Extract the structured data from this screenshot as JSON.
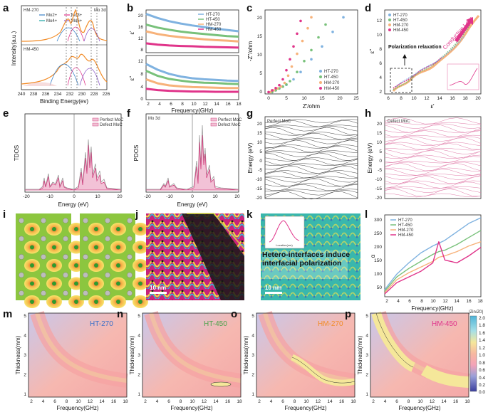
{
  "colors": {
    "ht270": "#7fb2e0",
    "ht450": "#78c17a",
    "hm270": "#f7b27a",
    "hm450": "#e0348a",
    "pink": "#e07aa8",
    "contour_low": "#3b3f9e",
    "contour_high": "#f5f0a0"
  },
  "panels": {
    "a": {
      "label": "a",
      "title_top": "HM-270",
      "title_top_right": "Mo 3d",
      "title_bottom": "HM-450",
      "legend": [
        "Mo2+",
        "Mo4+",
        "Mo3+",
        "Mo6+"
      ],
      "xlabel": "Binding Energy(ev)",
      "ylabel": "Intensity(a.u.)",
      "xticks": [
        "240",
        "238",
        "236",
        "234",
        "232",
        "230",
        "228",
        "226"
      ]
    },
    "b": {
      "label": "b",
      "xlabel": "Frequency(GHz)",
      "ylabel_top": "ε'",
      "ylabel_bottom": "ε''",
      "legend": [
        "HT-270",
        "HT-450",
        "HM-270",
        "HM-450"
      ],
      "xticks": [
        "2",
        "4",
        "6",
        "8",
        "10",
        "12",
        "14",
        "16",
        "18"
      ],
      "yticks_top": [
        "20",
        "16",
        "12",
        "8"
      ],
      "yticks_bottom": [
        "12",
        "8",
        "4",
        "0"
      ]
    },
    "c": {
      "label": "c",
      "xlabel": "Z'/ohm",
      "ylabel": "-Z''/ohm",
      "legend": [
        "HT-270",
        "HT-450",
        "HM-270",
        "HM-450"
      ],
      "xticks": [
        "0",
        "5",
        "10",
        "15",
        "20",
        "25"
      ],
      "yticks": [
        "0",
        "5",
        "10",
        "15",
        "20"
      ]
    },
    "d": {
      "label": "d",
      "xlabel": "ε'",
      "ylabel": "ε''",
      "legend": [
        "HT-270",
        "HT-450",
        "HM-270",
        "HM-450"
      ],
      "annot_loss": "Conductive Loss",
      "annot_pol": "Polarization relaxation",
      "xticks": [
        "6",
        "8",
        "10",
        "12",
        "14",
        "16",
        "18",
        "20"
      ],
      "yticks": [
        "2",
        "4",
        "6",
        "8",
        "10",
        "12"
      ]
    },
    "e": {
      "label": "e",
      "xlabel": "Energy (eV)",
      "ylabel": "TDOS",
      "legend": [
        "Perfect MoC",
        "Defect MoC"
      ],
      "xticks": [
        "-20",
        "-10",
        "0",
        "10",
        "20"
      ]
    },
    "f": {
      "label": "f",
      "title": "Mo 3d",
      "xlabel": "Energy (eV)",
      "ylabel": "PDOS",
      "legend": [
        "Perfect MoC",
        "Defect MoC"
      ],
      "xticks": [
        "-20",
        "-10",
        "0",
        "10",
        "20"
      ]
    },
    "g": {
      "label": "g",
      "title": "Perfect MoC",
      "ylabel": "Energy (eV)",
      "yticks": [
        "20",
        "15",
        "10",
        "5",
        "0",
        "-5",
        "-10",
        "-15",
        "-20"
      ]
    },
    "h": {
      "label": "h",
      "title": "Defect MoC",
      "ylabel": "Energy (eV)",
      "yticks": [
        "20",
        "15",
        "10",
        "5",
        "0",
        "-5",
        "-10",
        "-15",
        "-20"
      ]
    },
    "i": {
      "label": "i"
    },
    "j": {
      "label": "j",
      "scalebar": "10 nm"
    },
    "k": {
      "label": "k",
      "scalebar": "10 nm",
      "annotation": "Hetero-interfaces induce interfacial polarization",
      "inset_xlabel": "Location(nm)"
    },
    "l": {
      "label": "l",
      "xlabel": "Frequency(GHz)",
      "ylabel": "α",
      "legend": [
        "HT-270",
        "HT-450",
        "HM-270",
        "HM-450"
      ],
      "xticks": [
        "2",
        "4",
        "6",
        "8",
        "10",
        "12",
        "14",
        "16",
        "18"
      ],
      "yticks": [
        "50",
        "100",
        "150",
        "200",
        "250",
        "300"
      ]
    },
    "m": {
      "label": "m",
      "title": "HT-270"
    },
    "n": {
      "label": "n",
      "title": "HT-450"
    },
    "o": {
      "label": "o",
      "title": "HM-270"
    },
    "p": {
      "label": "p",
      "title": "HM-450"
    }
  },
  "contour_common": {
    "xlabel": "Frequency(GHz)",
    "ylabel": "Thickness(mm)",
    "xticks": [
      "2",
      "4",
      "6",
      "8",
      "10",
      "12",
      "14",
      "16",
      "18"
    ],
    "yticks": [
      "1",
      "2",
      "3",
      "4",
      "5"
    ],
    "colorbar_title": "|Zin/Z0|",
    "colorbar_ticks": [
      "2.0",
      "1.8",
      "1.6",
      "1.4",
      "1.2",
      "1.0",
      "0.8",
      "0.6",
      "0.4",
      "0.2",
      "0.0"
    ]
  },
  "chart_data": [
    {
      "type": "line",
      "panel": "b-top",
      "x": [
        2,
        4,
        6,
        8,
        10,
        12,
        14,
        16,
        18
      ],
      "series": [
        {
          "name": "HT-270",
          "values": [
            20.5,
            19.0,
            17.8,
            16.9,
            16.2,
            15.6,
            15.0,
            14.5,
            14.0
          ]
        },
        {
          "name": "HT-450",
          "values": [
            16.5,
            15.4,
            14.6,
            13.9,
            13.4,
            13.0,
            12.6,
            12.2,
            12.0
          ]
        },
        {
          "name": "HM-270",
          "values": [
            14.0,
            13.0,
            12.3,
            11.8,
            11.4,
            11.0,
            10.7,
            10.5,
            10.2
          ]
        },
        {
          "name": "HM-450",
          "values": [
            9.5,
            9.0,
            8.7,
            8.5,
            8.4,
            8.2,
            8.1,
            8.0,
            7.9
          ]
        }
      ]
    },
    {
      "type": "line",
      "panel": "b-bottom",
      "x": [
        2,
        4,
        6,
        8,
        10,
        12,
        14,
        16,
        18
      ],
      "series": [
        {
          "name": "HT-270",
          "values": [
            10.5,
            8.8,
            7.6,
            6.8,
            6.3,
            6.0,
            5.8,
            5.6,
            5.5
          ]
        },
        {
          "name": "HT-450",
          "values": [
            8.5,
            7.0,
            6.1,
            5.6,
            5.2,
            5.0,
            4.9,
            4.7,
            4.6
          ]
        },
        {
          "name": "HM-270",
          "values": [
            6.0,
            4.8,
            4.2,
            3.9,
            3.7,
            3.6,
            3.5,
            3.4,
            3.4
          ]
        },
        {
          "name": "HM-450",
          "values": [
            3.2,
            2.8,
            2.6,
            2.5,
            2.4,
            2.4,
            2.3,
            2.3,
            2.3
          ]
        }
      ]
    },
    {
      "type": "scatter",
      "panel": "c",
      "series": [
        {
          "name": "HT-270",
          "x": [
            2,
            3,
            4,
            5,
            6,
            8,
            10,
            13,
            16,
            19,
            22
          ],
          "y": [
            0.5,
            1,
            1.5,
            2,
            2.5,
            4,
            6,
            9.5,
            13,
            17,
            21
          ]
        },
        {
          "name": "HT-450",
          "x": [
            2,
            3,
            4,
            5,
            6,
            7,
            9,
            11,
            13,
            15,
            17
          ],
          "y": [
            0.5,
            1,
            1.5,
            2,
            2.6,
            3.5,
            6,
            9,
            12,
            15.5,
            19
          ]
        },
        {
          "name": "HM-270",
          "x": [
            1.5,
            2.5,
            3.5,
            4.5,
            5.5,
            6.5,
            7.5,
            9,
            10.5,
            12,
            13
          ],
          "y": [
            0.5,
            1,
            1.5,
            2,
            3,
            5,
            7.5,
            11,
            14.5,
            18,
            21
          ]
        },
        {
          "name": "HM-450",
          "x": [
            1,
            2,
            3,
            4,
            5,
            6,
            7,
            8,
            9,
            10
          ],
          "y": [
            0.5,
            1,
            1.6,
            2.4,
            4,
            6.5,
            9.5,
            13,
            16.5,
            20
          ]
        }
      ]
    },
    {
      "type": "line",
      "panel": "l",
      "x": [
        2,
        4,
        6,
        8,
        10,
        11,
        12,
        14,
        16,
        18
      ],
      "series": [
        {
          "name": "HT-270",
          "values": [
            55,
            110,
            150,
            185,
            210,
            220,
            230,
            260,
            290,
            310
          ]
        },
        {
          "name": "HT-450",
          "values": [
            50,
            100,
            130,
            155,
            180,
            190,
            195,
            215,
            240,
            265
          ]
        },
        {
          "name": "HM-270",
          "values": [
            45,
            90,
            115,
            135,
            155,
            170,
            175,
            190,
            210,
            225
          ]
        },
        {
          "name": "HM-450",
          "values": [
            40,
            80,
            100,
            120,
            150,
            225,
            160,
            150,
            175,
            205
          ]
        }
      ]
    }
  ]
}
